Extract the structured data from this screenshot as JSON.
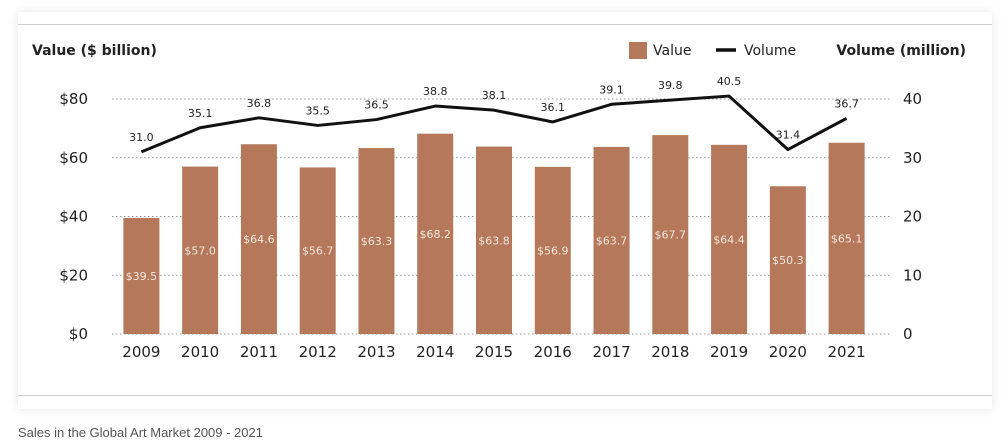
{
  "caption": "Sales in the Global Art Market 2009 - 2021",
  "chart_data": {
    "type": "bar",
    "categories": [
      "2009",
      "2010",
      "2011",
      "2012",
      "2013",
      "2014",
      "2015",
      "2016",
      "2017",
      "2018",
      "2019",
      "2020",
      "2021"
    ],
    "series": [
      {
        "name": "Value",
        "type": "bar",
        "axis": "left",
        "values": [
          39.5,
          57.0,
          64.6,
          56.7,
          63.3,
          68.2,
          63.8,
          56.9,
          63.7,
          67.7,
          64.4,
          50.3,
          65.1
        ],
        "labels": [
          "$39.5",
          "$57.0",
          "$64.6",
          "$56.7",
          "$63.3",
          "$68.2",
          "$63.8",
          "$56.9",
          "$63.7",
          "$67.7",
          "$64.4",
          "$50.3",
          "$65.1"
        ]
      },
      {
        "name": "Volume",
        "type": "line",
        "axis": "right",
        "values": [
          31.0,
          35.1,
          36.8,
          35.5,
          36.5,
          38.8,
          38.1,
          36.1,
          39.1,
          39.8,
          40.5,
          31.4,
          36.7
        ],
        "labels": [
          "31.0",
          "35.1",
          "36.8",
          "35.5",
          "36.5",
          "38.8",
          "38.1",
          "36.1",
          "39.1",
          "39.8",
          "40.5",
          "31.4",
          "36.7"
        ]
      }
    ],
    "left_axis": {
      "title": "Value ($ billion)",
      "ylim": [
        0,
        80
      ],
      "ticks": [
        0,
        20,
        40,
        60,
        80
      ],
      "tick_labels": [
        "$0",
        "$20",
        "$40",
        "$60",
        "$80"
      ]
    },
    "right_axis": {
      "title": "Volume (million)",
      "ylim": [
        0,
        40
      ],
      "ticks": [
        0,
        10,
        20,
        30,
        40
      ],
      "tick_labels": [
        "0",
        "10",
        "20",
        "30",
        "40"
      ]
    },
    "grid": "horizontal-dotted",
    "legend_position": "top-right",
    "colors": {
      "bar": "#b5785a",
      "line": "#111111",
      "grid": "#9a9a9a",
      "bar_label": "#f3e6dd",
      "text": "#222222"
    }
  }
}
